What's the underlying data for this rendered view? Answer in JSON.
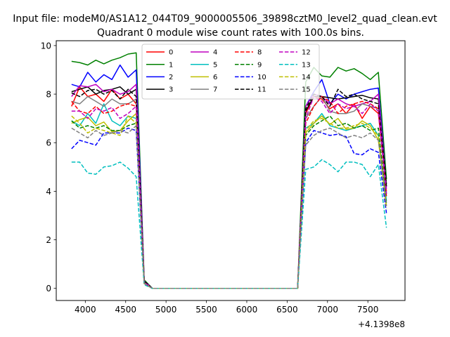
{
  "chart_data": {
    "type": "line",
    "suptitle": "Input file: modeM0/AS1A12_044T09_9000005506_39898cztM0_level2_quad_clean.evt",
    "title": "Quadrant 0 module wise count rates with 100.0s bins.",
    "xlabel": "",
    "ylabel": "",
    "offset_label": "+4.1398e8",
    "xlim": [
      3640,
      7960
    ],
    "ylim": [
      -0.5,
      10.2
    ],
    "xticks": [
      4000,
      4500,
      5000,
      5500,
      6000,
      6500,
      7000,
      7500
    ],
    "xtick_labels": [
      "4000",
      "4500",
      "5000",
      "5500",
      "6000",
      "6500",
      "7000",
      "7500"
    ],
    "yticks": [
      0,
      2,
      4,
      6,
      8,
      10
    ],
    "ytick_labels": [
      "0",
      "2",
      "4",
      "6",
      "8",
      "10"
    ],
    "grid": false,
    "legend_position": "top-center",
    "legend_columns": 4,
    "x": [
      3830,
      3930,
      4030,
      4130,
      4230,
      4330,
      4430,
      4530,
      4630,
      4730,
      4830,
      4930,
      5030,
      5130,
      5230,
      5330,
      5430,
      5530,
      5630,
      5730,
      5830,
      5930,
      6030,
      6130,
      6230,
      6330,
      6430,
      6530,
      6630,
      6730,
      6830,
      6930,
      7030,
      7130,
      7230,
      7330,
      7430,
      7530,
      7630,
      7730
    ],
    "series": [
      {
        "name": "0",
        "color": "#ff0000",
        "dash": "solid",
        "values": [
          7.5,
          8.3,
          7.9,
          8.0,
          7.7,
          8.2,
          7.8,
          8.0,
          7.6,
          0.3,
          0,
          0,
          0,
          0,
          0,
          0,
          0,
          0,
          0,
          0,
          0,
          0,
          0,
          0,
          0,
          0,
          0,
          0,
          0,
          7.2,
          7.9,
          7.8,
          7.4,
          7.6,
          7.2,
          7.6,
          7.0,
          7.5,
          7.2,
          4.0
        ]
      },
      {
        "name": "1",
        "color": "#008000",
        "dash": "solid",
        "values": [
          9.35,
          9.3,
          9.2,
          9.4,
          9.25,
          9.4,
          9.5,
          9.65,
          9.7,
          0.35,
          0,
          0,
          0,
          0,
          0,
          0,
          0,
          0,
          0,
          0,
          0,
          0,
          0,
          0,
          0,
          0,
          0,
          0,
          0,
          8.5,
          9.1,
          8.75,
          8.7,
          9.1,
          8.95,
          9.05,
          8.85,
          8.6,
          8.9,
          4.5
        ]
      },
      {
        "name": "2",
        "color": "#0000ff",
        "dash": "solid",
        "values": [
          8.4,
          8.3,
          8.9,
          8.5,
          8.8,
          8.6,
          9.2,
          8.7,
          9.0,
          0.3,
          0,
          0,
          0,
          0,
          0,
          0,
          0,
          0,
          0,
          0,
          0,
          0,
          0,
          0,
          0,
          0,
          0,
          0,
          0,
          7.5,
          8.1,
          8.6,
          7.6,
          8.0,
          7.8,
          8.0,
          8.1,
          8.2,
          8.25,
          4.2
        ]
      },
      {
        "name": "3",
        "color": "#000000",
        "dash": "solid",
        "values": [
          8.1,
          8.2,
          8.3,
          8.0,
          8.15,
          8.2,
          8.3,
          8.0,
          8.2,
          0.25,
          0,
          0,
          0,
          0,
          0,
          0,
          0,
          0,
          0,
          0,
          0,
          0,
          0,
          0,
          0,
          0,
          0,
          0,
          0,
          7.3,
          7.9,
          7.9,
          7.85,
          7.8,
          7.85,
          7.9,
          7.95,
          7.85,
          7.8,
          4.3
        ]
      },
      {
        "name": "4",
        "color": "#bf00bf",
        "dash": "solid",
        "values": [
          7.9,
          8.35,
          8.3,
          8.4,
          8.1,
          8.2,
          8.0,
          8.1,
          8.4,
          0.3,
          0,
          0,
          0,
          0,
          0,
          0,
          0,
          0,
          0,
          0,
          0,
          0,
          0,
          0,
          0,
          0,
          0,
          0,
          0,
          7.5,
          8.0,
          7.9,
          7.6,
          7.8,
          7.6,
          7.5,
          7.6,
          7.7,
          8.0,
          4.1
        ]
      },
      {
        "name": "5",
        "color": "#00bfbf",
        "dash": "solid",
        "values": [
          6.9,
          6.7,
          7.2,
          6.8,
          7.6,
          6.9,
          6.7,
          7.1,
          7.0,
          0.2,
          0,
          0,
          0,
          0,
          0,
          0,
          0,
          0,
          0,
          0,
          0,
          0,
          0,
          0,
          0,
          0,
          0,
          0,
          0,
          6.6,
          6.8,
          7.2,
          6.7,
          6.6,
          6.5,
          6.6,
          6.7,
          6.8,
          6.3,
          3.6
        ]
      },
      {
        "name": "6",
        "color": "#bfbf00",
        "dash": "solid",
        "values": [
          6.8,
          6.95,
          7.05,
          6.7,
          6.85,
          6.45,
          6.5,
          6.9,
          7.2,
          0.2,
          0,
          0,
          0,
          0,
          0,
          0,
          0,
          0,
          0,
          0,
          0,
          0,
          0,
          0,
          0,
          0,
          0,
          0,
          0,
          6.4,
          6.8,
          7.1,
          6.75,
          7.0,
          6.55,
          6.6,
          6.9,
          6.7,
          6.1,
          3.4
        ]
      },
      {
        "name": "7",
        "color": "#808080",
        "dash": "solid",
        "values": [
          7.7,
          7.6,
          7.9,
          7.7,
          7.5,
          7.8,
          7.6,
          7.6,
          7.8,
          0.25,
          0,
          0,
          0,
          0,
          0,
          0,
          0,
          0,
          0,
          0,
          0,
          0,
          0,
          0,
          0,
          0,
          0,
          0,
          0,
          7.0,
          7.5,
          7.9,
          7.3,
          7.2,
          7.2,
          7.3,
          7.6,
          7.5,
          7.4,
          3.9
        ]
      },
      {
        "name": "8",
        "color": "#ff0000",
        "dash": "dashed",
        "values": [
          7.7,
          7.3,
          7.2,
          7.5,
          7.2,
          7.3,
          7.5,
          7.6,
          7.5,
          0.25,
          0,
          0,
          0,
          0,
          0,
          0,
          0,
          0,
          0,
          0,
          0,
          0,
          0,
          0,
          0,
          0,
          0,
          0,
          0,
          6.8,
          7.5,
          7.9,
          7.7,
          7.2,
          7.5,
          7.6,
          7.7,
          7.6,
          7.4,
          3.8
        ]
      },
      {
        "name": "9",
        "color": "#008000",
        "dash": "dashed",
        "values": [
          6.9,
          6.6,
          6.7,
          6.6,
          6.7,
          6.5,
          6.5,
          6.7,
          6.8,
          0.2,
          0,
          0,
          0,
          0,
          0,
          0,
          0,
          0,
          0,
          0,
          0,
          0,
          0,
          0,
          0,
          0,
          0,
          0,
          0,
          6.3,
          6.7,
          6.9,
          7.1,
          6.7,
          6.8,
          6.6,
          6.7,
          6.5,
          6.6,
          3.5
        ]
      },
      {
        "name": "10",
        "color": "#0000ff",
        "dash": "dashed",
        "values": [
          5.75,
          6.1,
          6.0,
          5.9,
          6.4,
          6.4,
          6.4,
          6.6,
          6.5,
          0.2,
          0,
          0,
          0,
          0,
          0,
          0,
          0,
          0,
          0,
          0,
          0,
          0,
          0,
          0,
          0,
          0,
          0,
          0,
          0,
          6.0,
          6.5,
          6.4,
          6.3,
          6.35,
          6.25,
          5.55,
          5.5,
          5.75,
          5.6,
          3.1
        ]
      },
      {
        "name": "11",
        "color": "#000000",
        "dash": "dashed",
        "values": [
          8.05,
          7.9,
          8.15,
          8.2,
          8.0,
          8.15,
          7.8,
          8.2,
          7.9,
          0.3,
          0,
          0,
          0,
          0,
          0,
          0,
          0,
          0,
          0,
          0,
          0,
          0,
          0,
          0,
          0,
          0,
          0,
          0,
          0,
          7.4,
          8.0,
          7.9,
          7.5,
          8.2,
          7.9,
          8.0,
          7.8,
          7.7,
          7.6,
          4.2
        ]
      },
      {
        "name": "12",
        "color": "#bf00bf",
        "dash": "dashed",
        "values": [
          7.3,
          7.3,
          7.0,
          7.4,
          7.3,
          7.45,
          7.0,
          7.2,
          7.5,
          0.25,
          0,
          0,
          0,
          0,
          0,
          0,
          0,
          0,
          0,
          0,
          0,
          0,
          0,
          0,
          0,
          0,
          0,
          0,
          0,
          7.0,
          7.9,
          7.7,
          7.2,
          7.6,
          7.4,
          7.5,
          7.2,
          7.6,
          7.3,
          3.9
        ]
      },
      {
        "name": "13",
        "color": "#00bfbf",
        "dash": "dashed",
        "values": [
          5.2,
          5.2,
          4.75,
          4.7,
          5.0,
          5.05,
          5.2,
          4.95,
          4.6,
          0.15,
          0,
          0,
          0,
          0,
          0,
          0,
          0,
          0,
          0,
          0,
          0,
          0,
          0,
          0,
          0,
          0,
          0,
          0,
          0,
          4.9,
          5.0,
          5.3,
          5.1,
          4.8,
          5.2,
          5.2,
          5.1,
          4.6,
          5.1,
          2.5
        ]
      },
      {
        "name": "14",
        "color": "#bfbf00",
        "dash": "dashed",
        "values": [
          7.1,
          6.8,
          6.4,
          6.6,
          6.5,
          6.4,
          6.3,
          7.1,
          6.8,
          0.2,
          0,
          0,
          0,
          0,
          0,
          0,
          0,
          0,
          0,
          0,
          0,
          0,
          0,
          0,
          0,
          0,
          0,
          0,
          0,
          6.5,
          6.9,
          7.0,
          6.8,
          6.6,
          6.6,
          6.7,
          6.8,
          6.6,
          6.3,
          3.3
        ]
      },
      {
        "name": "15",
        "color": "#808080",
        "dash": "dashed",
        "values": [
          6.6,
          6.4,
          6.2,
          6.5,
          6.3,
          6.4,
          6.5,
          6.4,
          6.7,
          0.2,
          0,
          0,
          0,
          0,
          0,
          0,
          0,
          0,
          0,
          0,
          0,
          0,
          0,
          0,
          0,
          0,
          0,
          0,
          0,
          5.9,
          6.3,
          6.5,
          6.6,
          6.4,
          6.2,
          6.3,
          6.2,
          6.4,
          6.1,
          3.4
        ]
      }
    ]
  }
}
